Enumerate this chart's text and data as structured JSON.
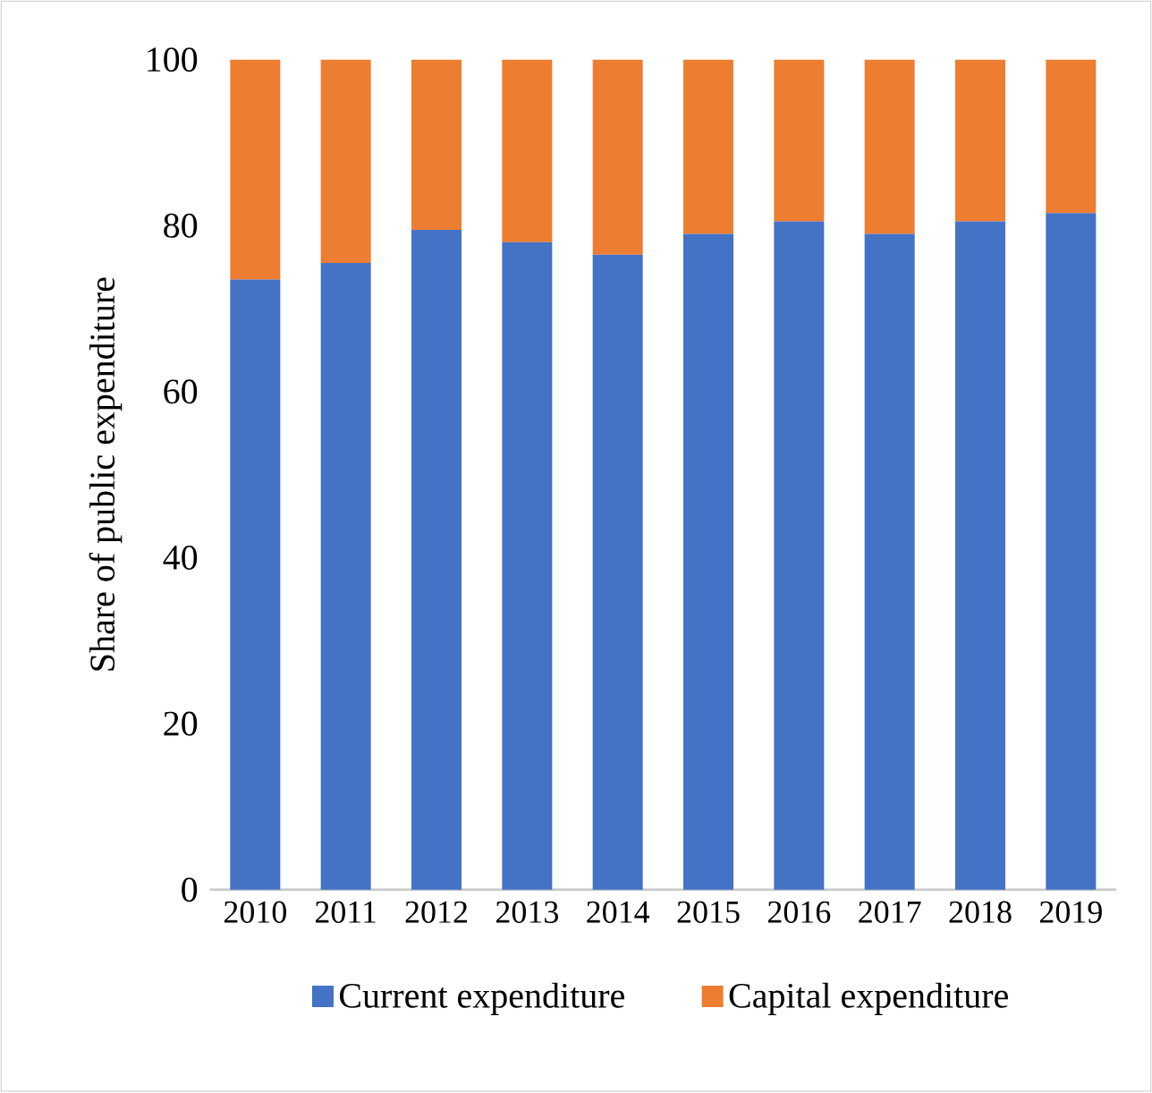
{
  "chart_data": {
    "type": "bar",
    "stacked": true,
    "ylabel": "Share of public expenditure",
    "categories": [
      "2010",
      "2011",
      "2012",
      "2013",
      "2014",
      "2015",
      "2016",
      "2017",
      "2018",
      "2019"
    ],
    "series": [
      {
        "name": "Current expenditure",
        "color": "#4472c4",
        "values": [
          73.5,
          75.5,
          79.5,
          78,
          76.5,
          79,
          80.5,
          79,
          80.5,
          81.5
        ]
      },
      {
        "name": "Capital expenditure",
        "color": "#ed7d31",
        "values": [
          26.5,
          24.5,
          20.5,
          22,
          23.5,
          21,
          19.5,
          21,
          19.5,
          18.5
        ]
      }
    ],
    "ylim": [
      0,
      100
    ],
    "yticks": [
      0,
      20,
      40,
      60,
      80,
      100
    ],
    "legend": "bottom"
  }
}
